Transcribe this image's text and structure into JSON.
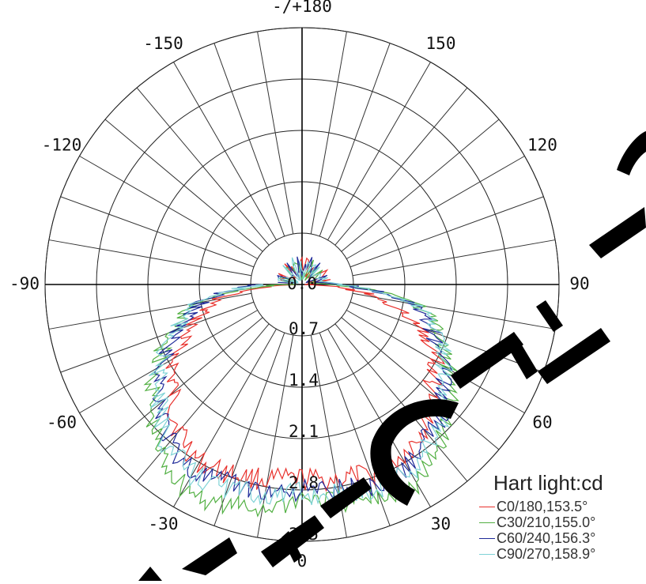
{
  "chart_data": {
    "type": "polar-line",
    "angle_labels": [
      {
        "angle": 180,
        "text": "-/+180"
      },
      {
        "angle": -150,
        "text": "-150"
      },
      {
        "angle": 150,
        "text": "150"
      },
      {
        "angle": -120,
        "text": "-120"
      },
      {
        "angle": 120,
        "text": "120"
      },
      {
        "angle": -90,
        "text": "-90"
      },
      {
        "angle": 90,
        "text": "90"
      },
      {
        "angle": -60,
        "text": "-60"
      },
      {
        "angle": 60,
        "text": "60"
      },
      {
        "angle": -30,
        "text": "-30"
      },
      {
        "angle": 30,
        "text": "30"
      },
      {
        "angle": 0,
        "text": "0"
      }
    ],
    "radial_ticks": [
      0,
      0.7,
      1.4,
      2.1,
      2.8,
      3.5
    ],
    "radial_tick_labels": [
      "0.0",
      "0.7",
      "1.4",
      "2.1",
      "2.8",
      "3.5"
    ],
    "rlim": [
      0,
      3.5
    ],
    "angular_step": 10,
    "grid": true,
    "legend_title": "Hart light:cd",
    "legend_position": "bottom-right",
    "series": [
      {
        "name": "C0/180,153.5°",
        "color": "#e8312c",
        "angles": [
          -90,
          -80,
          -70,
          -60,
          -50,
          -40,
          -30,
          -20,
          -10,
          0,
          10,
          20,
          30,
          40,
          50,
          60,
          70,
          80,
          90
        ],
        "values": [
          0.05,
          1.2,
          1.6,
          2.0,
          2.3,
          2.6,
          2.8,
          2.75,
          2.7,
          2.65,
          2.7,
          2.75,
          2.7,
          2.55,
          2.3,
          2.1,
          1.7,
          1.1,
          0.05
        ]
      },
      {
        "name": "C30/210,155.0°",
        "color": "#52b043",
        "angles": [
          -90,
          -80,
          -70,
          -60,
          -50,
          -40,
          -30,
          -20,
          -10,
          0,
          10,
          20,
          30,
          40,
          50,
          60,
          70,
          80,
          90
        ],
        "values": [
          0.2,
          1.5,
          1.9,
          2.3,
          2.7,
          3.0,
          3.2,
          3.2,
          3.1,
          2.9,
          3.0,
          3.1,
          3.15,
          2.9,
          2.6,
          2.3,
          2.0,
          1.6,
          0.4
        ]
      },
      {
        "name": "C60/240,156.3°",
        "color": "#1f2a99",
        "angles": [
          -90,
          -80,
          -70,
          -60,
          -50,
          -40,
          -30,
          -20,
          -10,
          0,
          10,
          20,
          30,
          40,
          50,
          60,
          70,
          80,
          90
        ],
        "values": [
          0.6,
          1.4,
          1.8,
          2.2,
          2.5,
          2.8,
          2.95,
          2.9,
          2.85,
          2.8,
          2.85,
          2.9,
          2.85,
          2.7,
          2.5,
          2.2,
          1.9,
          1.5,
          0.5
        ]
      },
      {
        "name": "C90/270,158.9°",
        "color": "#7fd3d6",
        "angles": [
          -90,
          -80,
          -70,
          -60,
          -50,
          -40,
          -30,
          -20,
          -10,
          0,
          10,
          20,
          30,
          40,
          50,
          60,
          70,
          80,
          90
        ],
        "values": [
          0.5,
          1.5,
          1.85,
          2.25,
          2.55,
          2.85,
          3.0,
          2.95,
          2.9,
          2.85,
          2.9,
          2.95,
          2.95,
          2.75,
          2.55,
          2.25,
          1.95,
          1.55,
          0.55
        ]
      }
    ]
  },
  "watermark": {
    "text": "TECNIC",
    "color": "#000000"
  }
}
